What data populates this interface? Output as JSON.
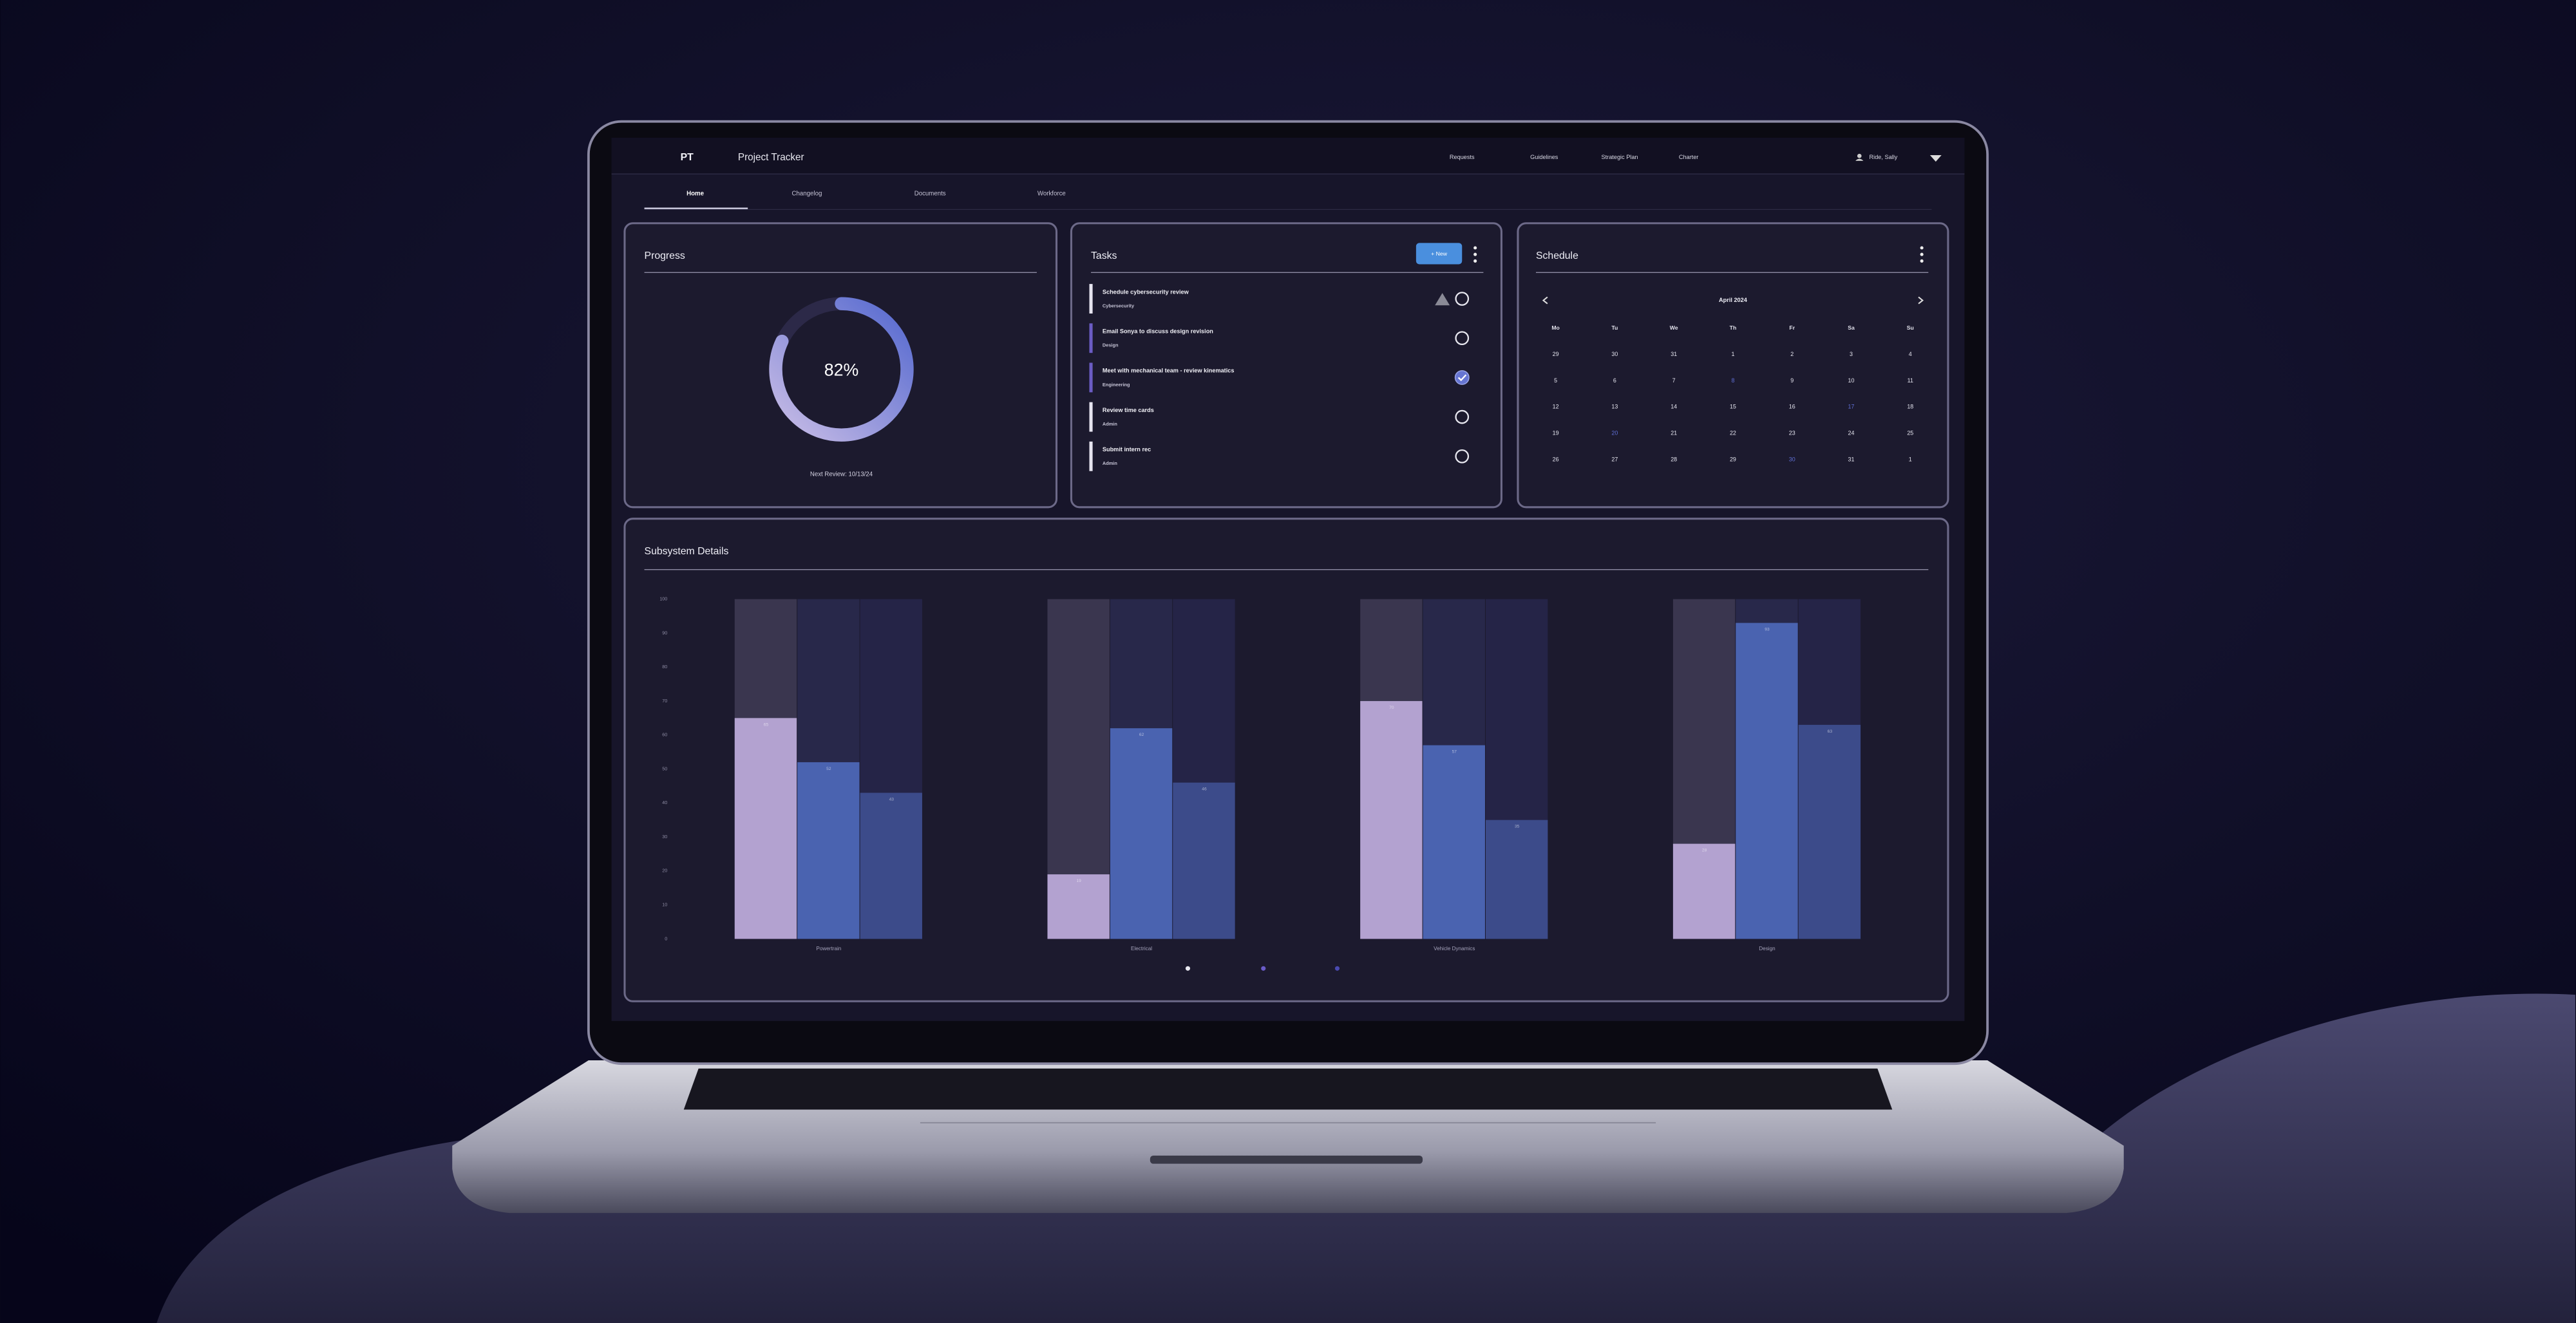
{
  "header": {
    "logo": "PT",
    "title": "Project Tracker",
    "nav": [
      "Requests",
      "Guidelines",
      "Strategic Plan",
      "Charter"
    ],
    "user": "Ride, Sally"
  },
  "tabs": {
    "items": [
      "Home",
      "Changelog",
      "Documents",
      "Workforce"
    ],
    "active": 0
  },
  "progress": {
    "title": "Progress",
    "value": 82,
    "value_label": "82%",
    "next_review": "Next Review: 10/13/24"
  },
  "tasks": {
    "title": "Tasks",
    "new_button": "+ New",
    "items": [
      {
        "title": "Schedule cybersecurity review",
        "category": "Cybersecurity",
        "color": "#e6e4f0",
        "warning": true,
        "done": false
      },
      {
        "title": "Email Sonya to discuss design revision",
        "category": "Design",
        "color": "#6b5cc4",
        "warning": false,
        "done": false
      },
      {
        "title": "Meet with mechanical team - review kinematics",
        "category": "Engineering",
        "color": "#6b5cc4",
        "warning": false,
        "done": true
      },
      {
        "title": "Review time cards",
        "category": "Admin",
        "color": "#e6e4f0",
        "warning": false,
        "done": false
      },
      {
        "title": "Submit intern rec",
        "category": "Admin",
        "color": "#e6e4f0",
        "warning": false,
        "done": false
      }
    ]
  },
  "schedule": {
    "title": "Schedule",
    "month": "April 2024",
    "highlight_color": "#5f6fd6",
    "weekdays": [
      "Mo",
      "Tu",
      "We",
      "Th",
      "Fr",
      "Sa",
      "Su"
    ],
    "weeks": [
      [
        29,
        30,
        31,
        1,
        2,
        3,
        4
      ],
      [
        5,
        6,
        7,
        {
          "day": 8,
          "highlighted": true
        },
        9,
        10,
        11
      ],
      [
        12,
        13,
        14,
        15,
        16,
        {
          "day": 17,
          "highlighted": true
        },
        18
      ],
      [
        19,
        {
          "day": 20,
          "highlighted": true
        },
        21,
        22,
        23,
        24,
        25
      ],
      [
        26,
        27,
        28,
        29,
        {
          "day": 30,
          "highlighted": true
        },
        31,
        1
      ]
    ]
  },
  "chart_data": {
    "type": "bar",
    "title": "Subsystem Details",
    "categories": [
      "Powertrain",
      "Electrical",
      "Vehicle Dynamics",
      "Design"
    ],
    "series": [
      {
        "color": "#b3a2d0",
        "track_color": "#3a364f",
        "values": [
          65,
          19,
          70,
          28
        ]
      },
      {
        "color": "#4a63b0",
        "track_color": "#28284a",
        "values": [
          52,
          62,
          57,
          93
        ]
      },
      {
        "color": "#3c4b8a",
        "track_color": "#252447",
        "values": [
          43,
          46,
          35,
          63
        ]
      }
    ],
    "ylim": [
      0,
      100
    ],
    "yticks": [
      0,
      10,
      20,
      30,
      40,
      50,
      60,
      70,
      80,
      90,
      100
    ],
    "grid": false
  }
}
